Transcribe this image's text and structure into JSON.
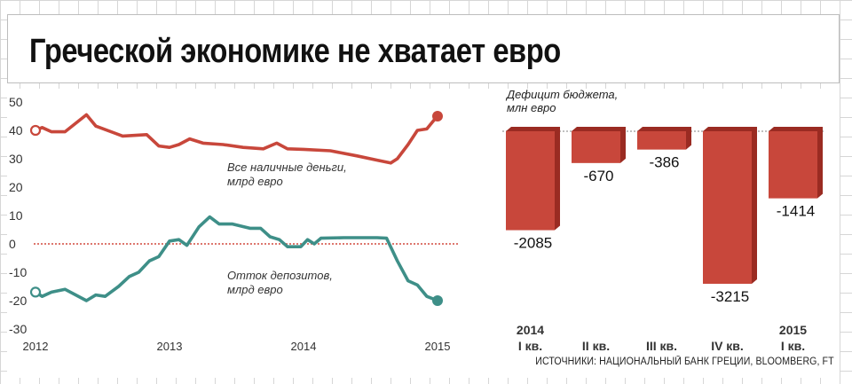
{
  "title": "Греческой экономике не хватает евро",
  "source": "ИСТОЧНИКИ: НАЦИОНАЛЬНЫЙ БАНК ГРЕЦИИ, BLOOMBERG, FT",
  "colors": {
    "red": "#c8473b",
    "teal": "#3e8f88",
    "bar": "#c8473b",
    "barShade": "#9a2b22"
  },
  "chart_data": [
    {
      "type": "line",
      "x_ticks": [
        "2012",
        "2013",
        "2014",
        "2015"
      ],
      "y_ticks": [
        "50",
        "40",
        "30",
        "20",
        "10",
        "0",
        "-10",
        "-20",
        "-30"
      ],
      "ylim": [
        -30,
        50
      ],
      "xlim": [
        2012.0,
        2015.0
      ],
      "grid": false,
      "series": [
        {
          "name": "Все наличные деньги, млрд евро",
          "label_lines": [
            "Все наличные деньги,",
            "млрд евро"
          ],
          "color": "#c8473b",
          "points": [
            [
              2012.0,
              40
            ],
            [
              2012.05,
              41
            ],
            [
              2012.12,
              39.5
            ],
            [
              2012.22,
              39.5
            ],
            [
              2012.38,
              45.5
            ],
            [
              2012.45,
              41.5
            ],
            [
              2012.65,
              38
            ],
            [
              2012.83,
              38.5
            ],
            [
              2012.92,
              34.5
            ],
            [
              2013.0,
              34
            ],
            [
              2013.07,
              35
            ],
            [
              2013.15,
              37
            ],
            [
              2013.25,
              35.5
            ],
            [
              2013.4,
              35
            ],
            [
              2013.55,
              34
            ],
            [
              2013.7,
              33.5
            ],
            [
              2013.8,
              35.5
            ],
            [
              2013.88,
              33.5
            ],
            [
              2014.0,
              33.3
            ],
            [
              2014.2,
              32.8
            ],
            [
              2014.4,
              31
            ],
            [
              2014.55,
              29.5
            ],
            [
              2014.65,
              28.5
            ],
            [
              2014.7,
              30
            ],
            [
              2014.78,
              35
            ],
            [
              2014.85,
              40
            ],
            [
              2014.92,
              40.5
            ],
            [
              2014.98,
              44
            ],
            [
              2015.0,
              45
            ]
          ]
        },
        {
          "name": "Отток депозитов, млрд евро",
          "label_lines": [
            "Отток депозитов,",
            "млрд евро"
          ],
          "color": "#3e8f88",
          "points": [
            [
              2012.0,
              -17
            ],
            [
              2012.05,
              -18.5
            ],
            [
              2012.12,
              -17
            ],
            [
              2012.22,
              -16
            ],
            [
              2012.38,
              -20
            ],
            [
              2012.45,
              -18
            ],
            [
              2012.52,
              -18.5
            ],
            [
              2012.62,
              -15
            ],
            [
              2012.7,
              -11.5
            ],
            [
              2012.77,
              -10
            ],
            [
              2012.85,
              -6
            ],
            [
              2012.92,
              -4.5
            ],
            [
              2013.0,
              1
            ],
            [
              2013.07,
              1.5
            ],
            [
              2013.13,
              -0.5
            ],
            [
              2013.22,
              6
            ],
            [
              2013.3,
              9.5
            ],
            [
              2013.37,
              7
            ],
            [
              2013.47,
              7
            ],
            [
              2013.6,
              5.5
            ],
            [
              2013.68,
              5.5
            ],
            [
              2013.75,
              2.5
            ],
            [
              2013.82,
              1.5
            ],
            [
              2013.88,
              -1
            ],
            [
              2013.98,
              -1
            ],
            [
              2014.03,
              1.5
            ],
            [
              2014.08,
              0
            ],
            [
              2014.13,
              2
            ],
            [
              2014.3,
              2.2
            ],
            [
              2014.55,
              2.2
            ],
            [
              2014.62,
              2
            ],
            [
              2014.7,
              -6
            ],
            [
              2014.78,
              -13
            ],
            [
              2014.85,
              -14.5
            ],
            [
              2014.92,
              -18.5
            ],
            [
              2015.0,
              -20
            ]
          ]
        }
      ]
    },
    {
      "type": "bar",
      "title": "Дефицит бюджета, млн евро",
      "title_lines": [
        "Дефицит бюджета,",
        "млн евро"
      ],
      "categories": [
        [
          "2014",
          "I кв."
        ],
        [
          "",
          "II кв."
        ],
        [
          "",
          "III кв."
        ],
        [
          "",
          "IV кв."
        ],
        [
          "2015",
          "I кв."
        ]
      ],
      "values": [
        -2085,
        -670,
        -386,
        -3215,
        -1414
      ],
      "value_labels": [
        "-2085",
        "-670",
        "-386",
        "-3215",
        "-1414"
      ],
      "ylim": [
        -3215,
        0
      ]
    }
  ]
}
